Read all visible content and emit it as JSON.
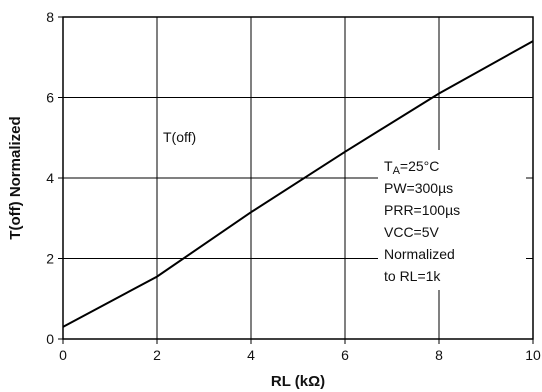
{
  "chart_data": {
    "type": "line",
    "title": "",
    "xlabel": "RL (kΩ)",
    "ylabel": "T(off) Normalized",
    "xlim": [
      0,
      10
    ],
    "ylim": [
      0,
      8
    ],
    "xticks": [
      "0",
      "2",
      "4",
      "6",
      "8",
      "10"
    ],
    "yticks": [
      "0",
      "2",
      "4",
      "6",
      "8"
    ],
    "grid": true,
    "series": [
      {
        "name": "T(off)",
        "x": [
          0,
          2,
          4,
          6,
          8,
          10
        ],
        "y": [
          0.3,
          1.55,
          3.15,
          4.65,
          6.1,
          7.4
        ]
      }
    ],
    "conditions": {
      "ta_prefix": "T",
      "ta_sub": "A",
      "ta_value": "=25°C",
      "pw": "PW=300µs",
      "prr": "PRR=100µs",
      "vcc": "VCC=5V",
      "norm1": "Normalized",
      "norm2": "to RL=1k"
    }
  }
}
